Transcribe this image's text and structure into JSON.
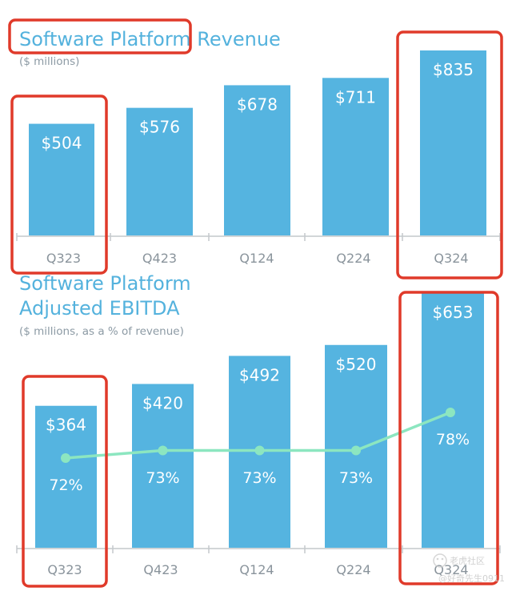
{
  "chart_data": [
    {
      "type": "bar",
      "title": "Software Platform Revenue",
      "subtitle": "($ millions)",
      "categories": [
        "Q323",
        "Q423",
        "Q124",
        "Q224",
        "Q324"
      ],
      "values": [
        504,
        576,
        678,
        711,
        835
      ],
      "value_labels": [
        "$504",
        "$576",
        "$678",
        "$711",
        "$835"
      ],
      "ylim": [
        0,
        900
      ],
      "grid": false,
      "bar_color": "#55b4e0",
      "highlight_color": "#e03a2a",
      "highlighted_categories": [
        "Q323",
        "Q324"
      ],
      "highlighted_title": true
    },
    {
      "type": "bar",
      "title_line1": "Software Platform",
      "title_line2": "Adjusted EBITDA",
      "subtitle": "($ millions, as a % of revenue)",
      "categories": [
        "Q323",
        "Q423",
        "Q124",
        "Q224",
        "Q324"
      ],
      "values": [
        364,
        420,
        492,
        520,
        653
      ],
      "value_labels": [
        "$364",
        "$420",
        "$492",
        "$520",
        "$653"
      ],
      "margin_line": {
        "values": [
          72,
          73,
          73,
          73,
          78
        ],
        "labels": [
          "72%",
          "73%",
          "73%",
          "73%",
          "78%"
        ],
        "color": "#8ce6c0"
      },
      "ylim": [
        0,
        700
      ],
      "grid": false,
      "bar_color": "#55b4e0",
      "highlight_color": "#e03a2a",
      "highlighted_categories": [
        "Q323",
        "Q324"
      ]
    }
  ],
  "watermark": {
    "line1": "老虎社区",
    "line2": "@好奇先生0911"
  }
}
